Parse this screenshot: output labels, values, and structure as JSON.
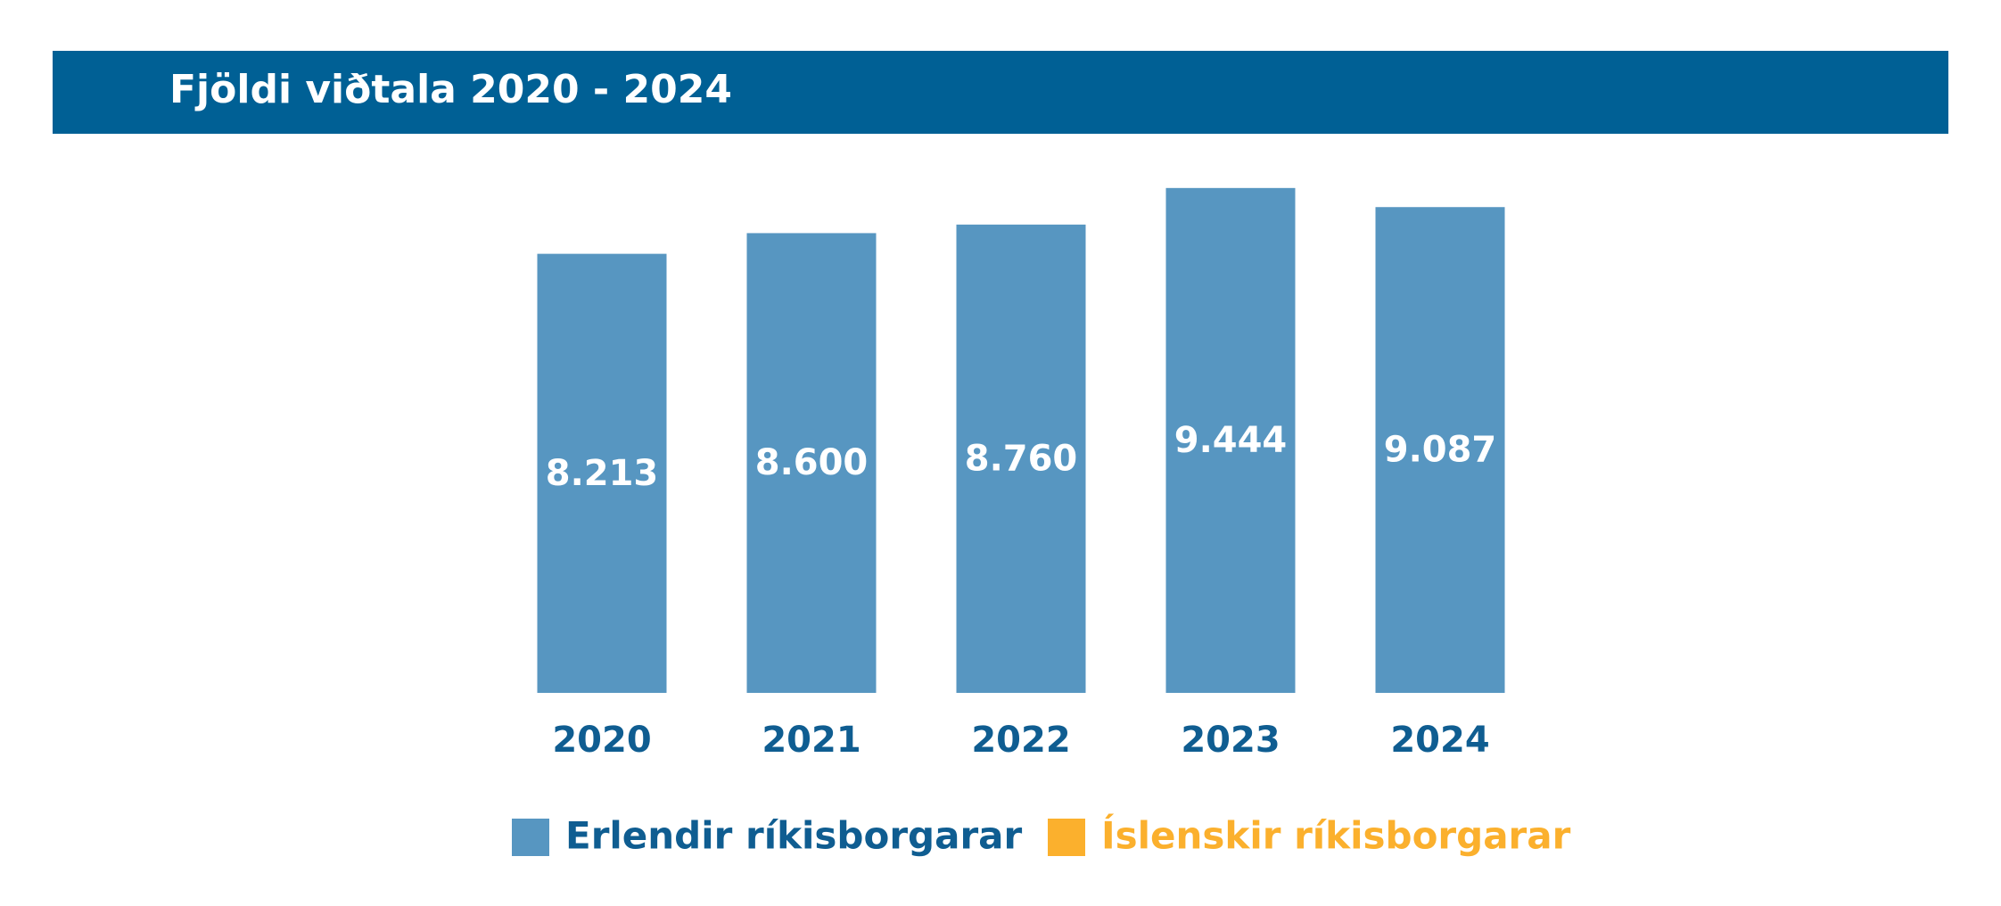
{
  "chart_data": {
    "type": "bar",
    "title": "Fjöldi viðtala 2020 - 2024",
    "categories": [
      "2020",
      "2021",
      "2022",
      "2023",
      "2024"
    ],
    "series": [
      {
        "name": "Erlendir ríkisborgarar",
        "color": "#5796c1",
        "values": [
          8213,
          8600,
          8760,
          9444,
          9087
        ],
        "value_labels": [
          "8.213",
          "8.600",
          "8.760",
          "9.444",
          "9.087"
        ]
      },
      {
        "name": "Íslenskir ríkisborgarar",
        "color": "#fbb02d",
        "values": [
          null,
          null,
          null,
          null,
          null
        ]
      }
    ],
    "ylim": [
      0,
      10000
    ],
    "grid": false
  }
}
